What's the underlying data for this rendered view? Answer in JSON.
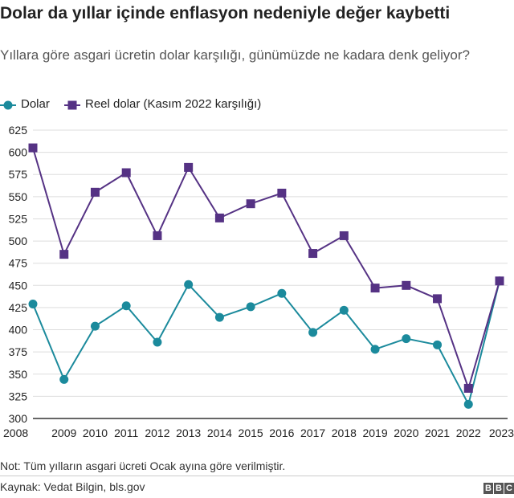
{
  "header": {
    "title": "Dolar da yıllar içinde enflasyon nedeniyle değer kaybetti",
    "subtitle": "Yıllara göre asgari ücretin dolar karşılığı, günümüzde ne kadara denk geliyor?"
  },
  "legend": {
    "items": [
      {
        "label": "Dolar",
        "marker": "circle",
        "color": "#1b8a9c"
      },
      {
        "label": "Reel dolar (Kasım 2022 karşılığı)",
        "marker": "square",
        "color": "#553284"
      }
    ]
  },
  "chart_data": {
    "type": "line",
    "x": [
      "2008",
      "2009",
      "2010",
      "2011",
      "2012",
      "2013",
      "2014",
      "2015",
      "2016",
      "2017",
      "2018",
      "2019",
      "2020",
      "2021",
      "2022",
      "2023"
    ],
    "series": [
      {
        "name": "Dolar",
        "color": "#1b8a9c",
        "marker": "circle",
        "values": [
          429,
          344,
          404,
          427,
          386,
          451,
          414,
          426,
          441,
          397,
          422,
          378,
          390,
          383,
          316,
          455
        ]
      },
      {
        "name": "Reel dolar (Kasım 2022 karşılığı)",
        "color": "#553284",
        "marker": "square",
        "values": [
          605,
          485,
          555,
          577,
          506,
          583,
          526,
          542,
          554,
          486,
          506,
          447,
          450,
          435,
          334,
          455
        ]
      }
    ],
    "ylim": [
      300,
      625
    ],
    "yticks": [
      300,
      325,
      350,
      375,
      400,
      425,
      450,
      475,
      500,
      525,
      550,
      575,
      600,
      625
    ],
    "grid": true,
    "gridline_color": "#dddddd",
    "baseline_color": "#333333",
    "legend_position": "top-left",
    "xlabel": "",
    "ylabel": ""
  },
  "footer": {
    "note": "Not: Tüm yılların asgari ücreti Ocak ayına göre verilmiştir.",
    "source": "Kaynak: Vedat Bilgin, bls.gov",
    "logo_letters": [
      "B",
      "B",
      "C"
    ]
  }
}
